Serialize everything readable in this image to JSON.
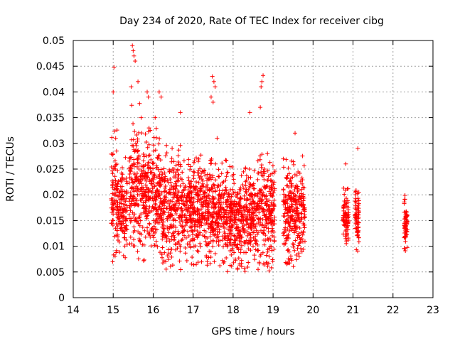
{
  "chart_data": {
    "type": "scatter",
    "title": "Day 234 of 2020, Rate Of TEC Index for receiver cibg",
    "xlabel": "GPS time / hours",
    "ylabel": "ROTI / TECUs",
    "xlim": [
      14,
      23
    ],
    "ylim": [
      0,
      0.05
    ],
    "xticks": [
      "14",
      "15",
      "16",
      "17",
      "18",
      "19",
      "20",
      "21",
      "22",
      "23"
    ],
    "yticks": [
      "0",
      "0.005",
      "0.01",
      "0.015",
      "0.02",
      "0.025",
      "0.03",
      "0.035",
      "0.04",
      "0.045",
      "0.05"
    ],
    "grid": true,
    "marker": "+",
    "color": "#ff0000",
    "series": [
      {
        "name": "ROTI",
        "clusters": [
          {
            "x": [
              14.95,
              15.1
            ],
            "y": [
              0.006,
              0.033
            ]
          },
          {
            "x": [
              15.1,
              15.35
            ],
            "y": [
              0.007,
              0.028
            ]
          },
          {
            "x": [
              15.4,
              15.75
            ],
            "y": [
              0.006,
              0.038
            ]
          },
          {
            "x": [
              15.75,
              16.2
            ],
            "y": [
              0.007,
              0.033
            ]
          },
          {
            "x": [
              16.2,
              16.7
            ],
            "y": [
              0.005,
              0.03
            ]
          },
          {
            "x": [
              16.7,
              17.3
            ],
            "y": [
              0.006,
              0.028
            ]
          },
          {
            "x": [
              17.3,
              17.85
            ],
            "y": [
              0.006,
              0.027
            ]
          },
          {
            "x": [
              17.85,
              18.4
            ],
            "y": [
              0.005,
              0.026
            ]
          },
          {
            "x": [
              18.4,
              18.6
            ],
            "y": [
              0.007,
              0.025
            ]
          },
          {
            "x": [
              18.6,
              19.05
            ],
            "y": [
              0.005,
              0.03
            ]
          },
          {
            "x": [
              19.25,
              19.8
            ],
            "y": [
              0.006,
              0.028
            ]
          },
          {
            "x": [
              20.75,
              20.9
            ],
            "y": [
              0.01,
              0.022
            ]
          },
          {
            "x": [
              21.05,
              21.15
            ],
            "y": [
              0.008,
              0.021
            ]
          },
          {
            "x": [
              22.28,
              22.36
            ],
            "y": [
              0.009,
              0.02
            ]
          }
        ],
        "outliers": [
          [
            15.02,
            0.0448
          ],
          [
            15.0,
            0.04
          ],
          [
            15.48,
            0.049
          ],
          [
            15.5,
            0.048
          ],
          [
            15.52,
            0.047
          ],
          [
            15.55,
            0.046
          ],
          [
            15.45,
            0.041
          ],
          [
            15.62,
            0.042
          ],
          [
            15.85,
            0.04
          ],
          [
            15.88,
            0.039
          ],
          [
            16.15,
            0.04
          ],
          [
            16.2,
            0.039
          ],
          [
            16.68,
            0.036
          ],
          [
            17.48,
            0.043
          ],
          [
            17.52,
            0.042
          ],
          [
            17.55,
            0.041
          ],
          [
            17.45,
            0.039
          ],
          [
            17.5,
            0.038
          ],
          [
            18.42,
            0.036
          ],
          [
            18.75,
            0.0432
          ],
          [
            18.72,
            0.042
          ],
          [
            18.7,
            0.041
          ],
          [
            18.68,
            0.037
          ],
          [
            19.55,
            0.032
          ],
          [
            20.82,
            0.026
          ],
          [
            21.12,
            0.029
          ],
          [
            15.7,
            0.035
          ],
          [
            16.05,
            0.035
          ],
          [
            17.6,
            0.031
          ]
        ]
      }
    ]
  }
}
